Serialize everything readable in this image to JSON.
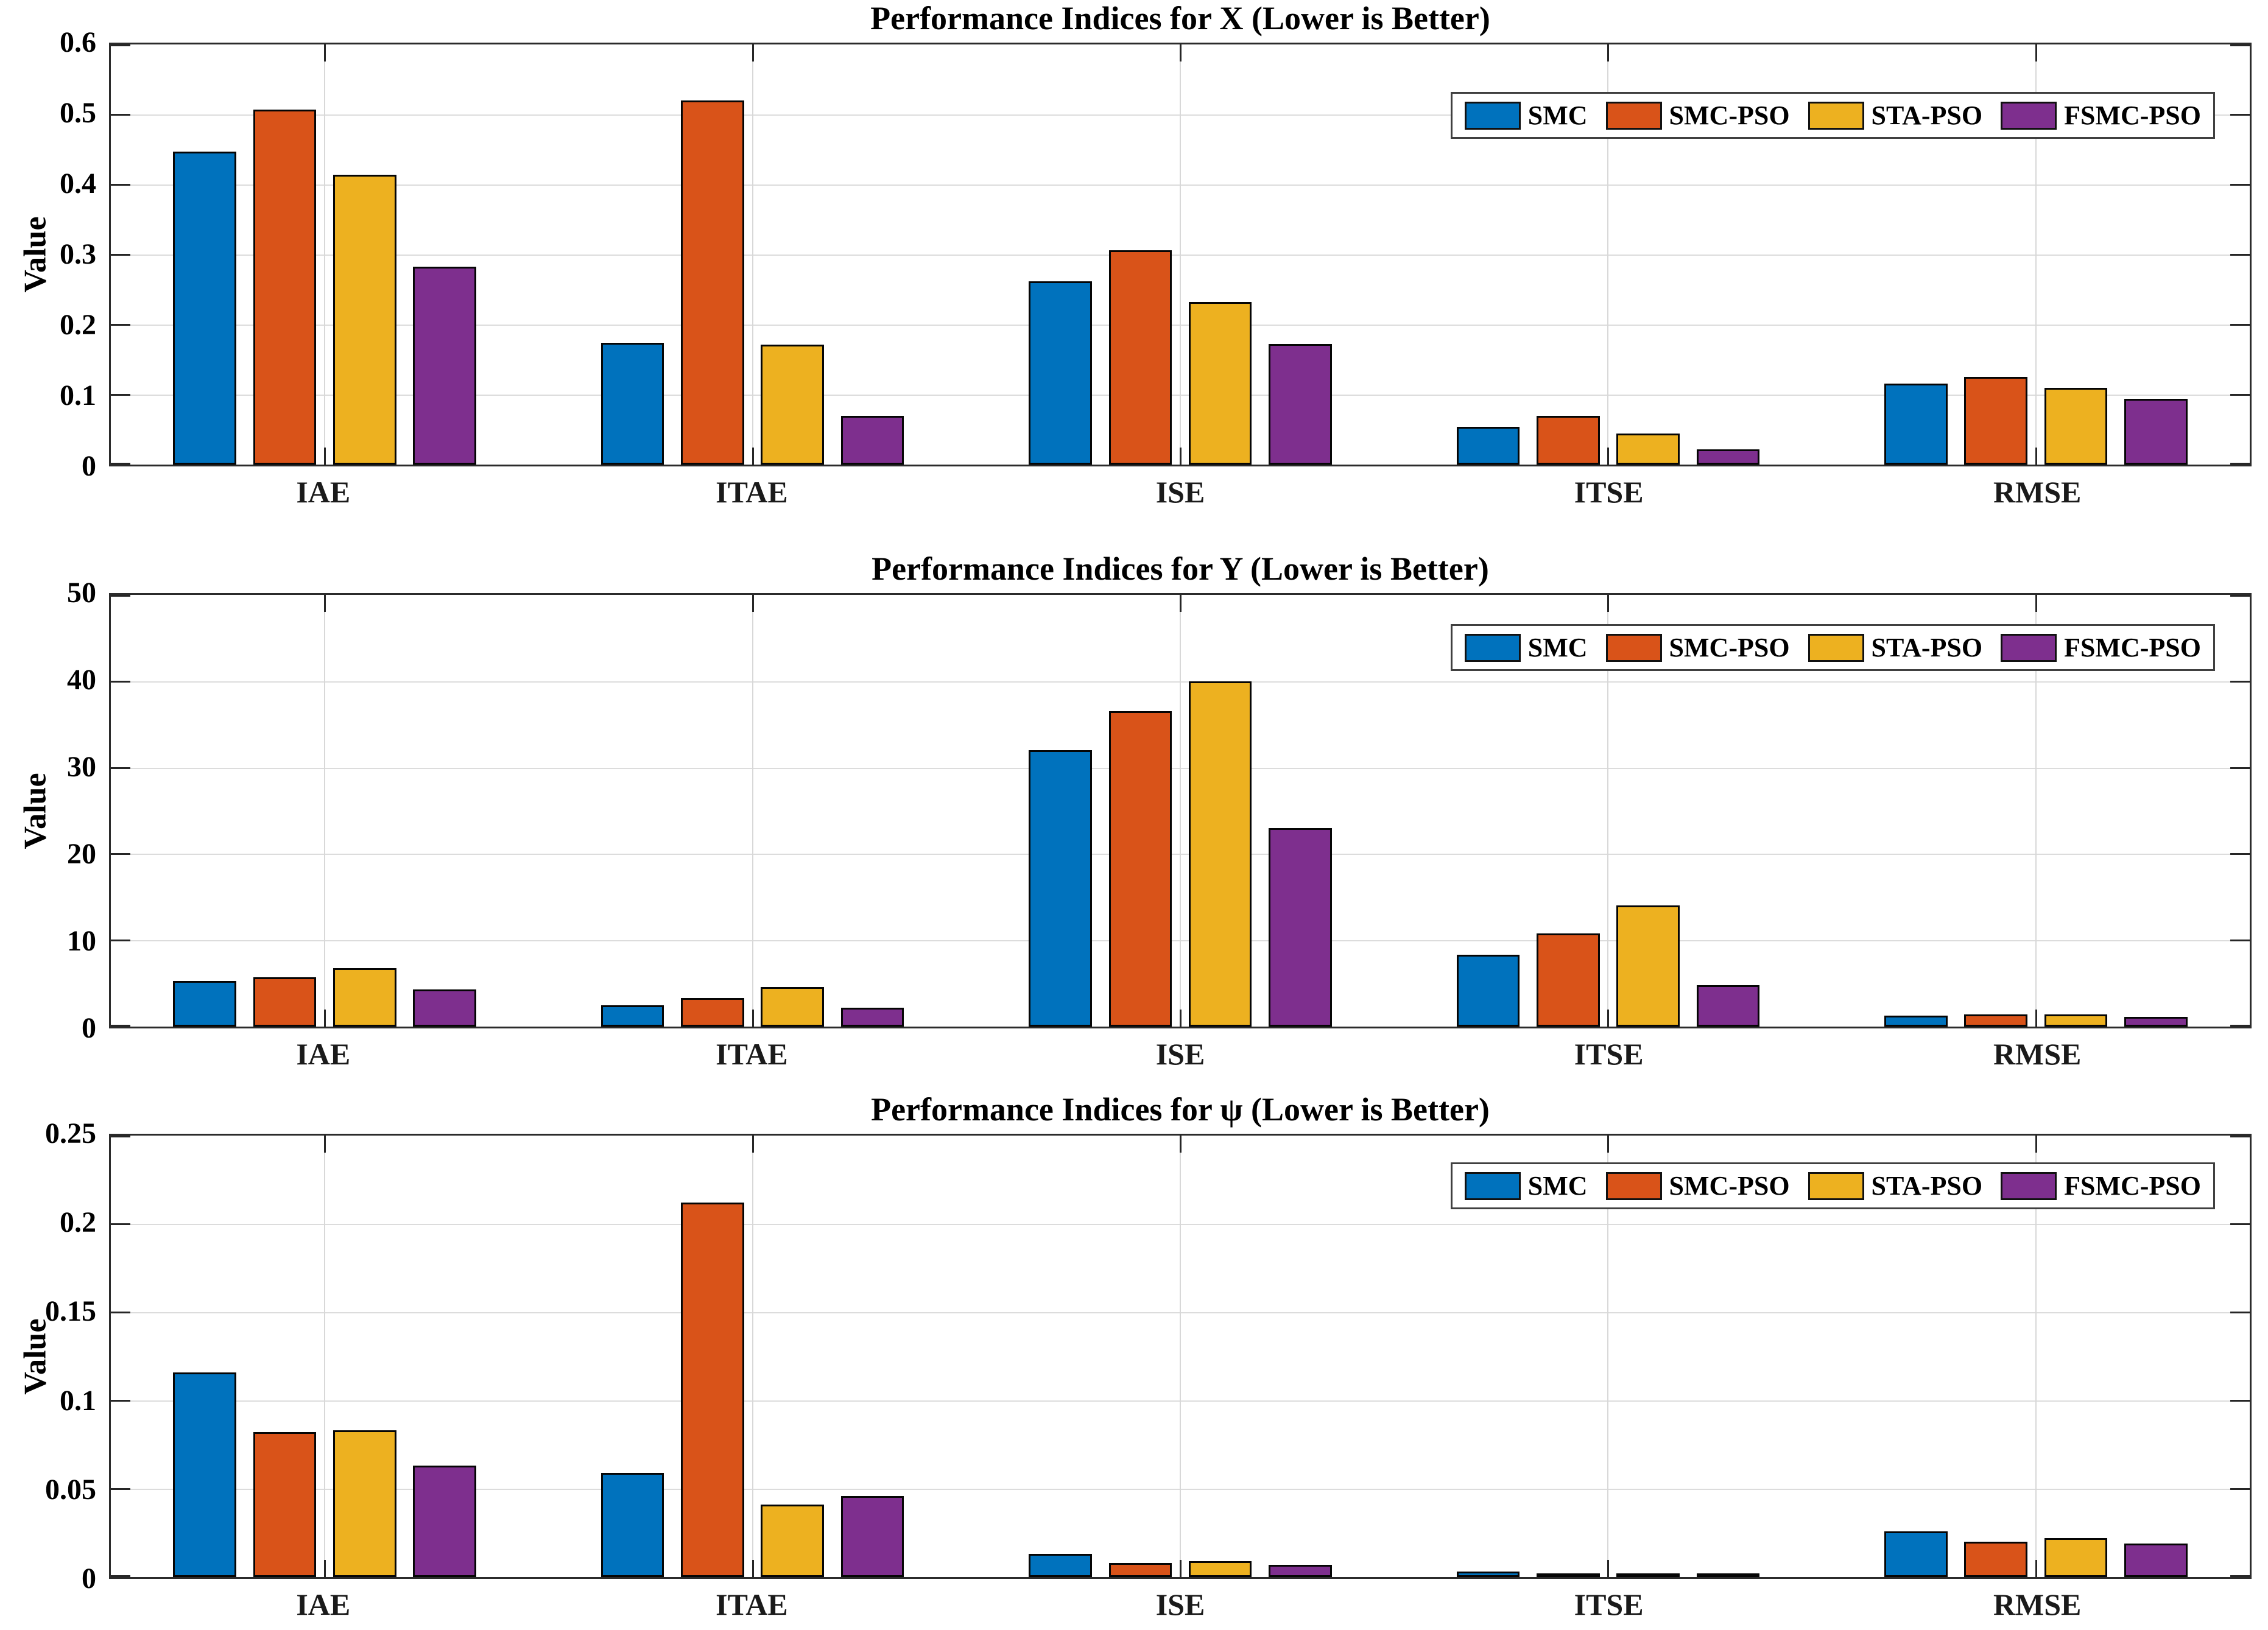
{
  "figure": {
    "kind": "matlab-style-bar-figure",
    "background": "#ffffff"
  },
  "colors": {
    "series": [
      "#0072BD",
      "#D95319",
      "#EDB120",
      "#7E2F8E"
    ],
    "bar_edge": "#050505",
    "axis": "#262626",
    "grid": "#dcdcdc",
    "legend_border": "#404040",
    "text": "#000000"
  },
  "legend": {
    "position": "top-right-inside",
    "items": [
      {
        "label": "SMC",
        "color": "#0072BD"
      },
      {
        "label": "SMC-PSO",
        "color": "#D95319"
      },
      {
        "label": "STA-PSO",
        "color": "#EDB120"
      },
      {
        "label": "FSMC-PSO",
        "color": "#7E2F8E"
      }
    ]
  },
  "chart_data": [
    {
      "type": "bar",
      "title": "Performance Indices for X (Lower is Better)",
      "ylabel": "Value",
      "xlabel": "",
      "ylim": [
        0,
        0.6
      ],
      "yticks": [
        0,
        0.1,
        0.2,
        0.3,
        0.4,
        0.5,
        0.6
      ],
      "ytick_labels": [
        "0",
        "0.1",
        "0.2",
        "0.3",
        "0.4",
        "0.5",
        "0.6"
      ],
      "categories": [
        "IAE",
        "ITAE",
        "ISE",
        "ITSE",
        "RMSE"
      ],
      "grid": true,
      "legend_position": "top-right",
      "series": [
        {
          "name": "SMC",
          "values": [
            0.447,
            0.174,
            0.262,
            0.054,
            0.116
          ]
        },
        {
          "name": "SMC-PSO",
          "values": [
            0.507,
            0.52,
            0.306,
            0.07,
            0.125
          ]
        },
        {
          "name": "STA-PSO",
          "values": [
            0.414,
            0.171,
            0.232,
            0.044,
            0.11
          ]
        },
        {
          "name": "FSMC-PSO",
          "values": [
            0.283,
            0.07,
            0.172,
            0.022,
            0.094
          ]
        }
      ]
    },
    {
      "type": "bar",
      "title": "Performance Indices for Y (Lower is Better)",
      "ylabel": "Value",
      "xlabel": "",
      "ylim": [
        0,
        50
      ],
      "yticks": [
        0,
        10,
        20,
        30,
        40,
        50
      ],
      "ytick_labels": [
        "0",
        "10",
        "20",
        "30",
        "40",
        "50"
      ],
      "categories": [
        "IAE",
        "ITAE",
        "ISE",
        "ITSE",
        "RMSE"
      ],
      "grid": true,
      "legend_position": "top-right",
      "series": [
        {
          "name": "SMC",
          "values": [
            5.3,
            2.5,
            32.0,
            8.3,
            1.3
          ]
        },
        {
          "name": "SMC-PSO",
          "values": [
            5.7,
            3.3,
            36.5,
            10.8,
            1.4
          ]
        },
        {
          "name": "STA-PSO",
          "values": [
            6.8,
            4.6,
            40.0,
            14.0,
            1.4
          ]
        },
        {
          "name": "FSMC-PSO",
          "values": [
            4.3,
            2.2,
            23.0,
            4.8,
            1.1
          ]
        }
      ]
    },
    {
      "type": "bar",
      "title": "Performance Indices for ψ (Lower is Better)",
      "ylabel": "Value",
      "xlabel": "",
      "ylim": [
        0,
        0.25
      ],
      "yticks": [
        0,
        0.05,
        0.1,
        0.15,
        0.2,
        0.25
      ],
      "ytick_labels": [
        "0",
        "0.05",
        "0.1",
        "0.15",
        "0.2",
        "0.25"
      ],
      "categories": [
        "IAE",
        "ITAE",
        "ISE",
        "ITSE",
        "RMSE"
      ],
      "grid": true,
      "legend_position": "top-right",
      "series": [
        {
          "name": "SMC",
          "values": [
            0.116,
            0.059,
            0.013,
            0.003,
            0.026
          ]
        },
        {
          "name": "SMC-PSO",
          "values": [
            0.082,
            0.212,
            0.008,
            0.001,
            0.02
          ]
        },
        {
          "name": "STA-PSO",
          "values": [
            0.083,
            0.041,
            0.009,
            0.002,
            0.022
          ]
        },
        {
          "name": "FSMC-PSO",
          "values": [
            0.063,
            0.046,
            0.007,
            0.0005,
            0.019
          ]
        }
      ]
    }
  ]
}
